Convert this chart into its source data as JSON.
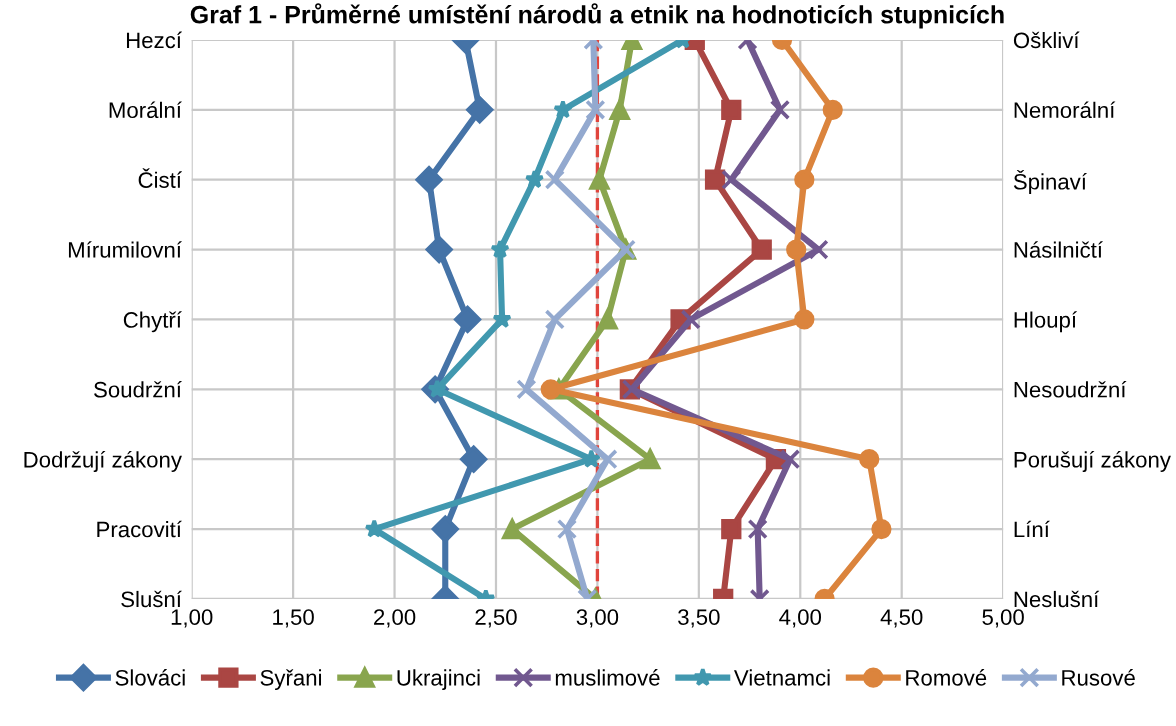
{
  "chart_data": {
    "type": "line",
    "orientation": "horizontal",
    "title": "Graf 1 - Průměrné umístění národů a etnik na hodnoticích stupnicích",
    "categories": [
      "Hezcí",
      "Morální",
      "Čistí",
      "Mírumilovní",
      "Chytří",
      "Soudržní",
      "Dodržují zákony",
      "Pracovití",
      "Slušní"
    ],
    "y2_categories": [
      "Oškliví",
      "Nemorální",
      "Špinaví",
      "Násilničtí",
      "Hloupí",
      "Nesoudržní",
      "Porušují zákony",
      "Líní",
      "Neslušní"
    ],
    "xlim": [
      1,
      5
    ],
    "xticks": [
      {
        "value": 1,
        "label": "1,00"
      },
      {
        "value": 1.5,
        "label": "1,50"
      },
      {
        "value": 2,
        "label": "2,00"
      },
      {
        "value": 2.5,
        "label": "2,50"
      },
      {
        "value": 3,
        "label": "3,00"
      },
      {
        "value": 3.5,
        "label": "3,50"
      },
      {
        "value": 4,
        "label": "4,00"
      },
      {
        "value": 4.5,
        "label": "4,50"
      },
      {
        "value": 5,
        "label": "5,00"
      }
    ],
    "grid": true,
    "legend": "bottom",
    "ref_lines": [
      {
        "axis": "x",
        "value": 3,
        "color": "#e0443c",
        "line_style": "dashed"
      }
    ],
    "series": [
      {
        "name": "Slováci",
        "color": "#4573a7",
        "marker": "diamond",
        "values": [
          2.35,
          2.42,
          2.17,
          2.22,
          2.36,
          2.2,
          2.39,
          2.25,
          2.25
        ]
      },
      {
        "name": "Syřani",
        "color": "#aa4643",
        "marker": "square",
        "values": [
          3.48,
          3.66,
          3.58,
          3.81,
          3.41,
          3.16,
          3.88,
          3.66,
          3.62
        ]
      },
      {
        "name": "Ukrajinci",
        "color": "#89a54e",
        "marker": "triangle",
        "values": [
          3.17,
          3.11,
          3.01,
          3.14,
          3.05,
          2.81,
          3.26,
          2.58,
          2.99
        ]
      },
      {
        "name": "muslimové",
        "color": "#71588f",
        "marker": "cross",
        "values": [
          3.74,
          3.9,
          3.66,
          4.09,
          3.46,
          3.17,
          3.95,
          3.79,
          3.8
        ]
      },
      {
        "name": "Vietnamci",
        "color": "#4198af",
        "marker": "star",
        "values": [
          3.42,
          2.83,
          2.69,
          2.52,
          2.53,
          2.21,
          2.97,
          1.9,
          2.45
        ]
      },
      {
        "name": "Romové",
        "color": "#db843d",
        "marker": "circle",
        "values": [
          3.91,
          4.16,
          4.02,
          3.98,
          4.02,
          2.77,
          4.34,
          4.4,
          4.12
        ]
      },
      {
        "name": "Rusové",
        "color": "#93a9cf",
        "marker": "cross",
        "values": [
          2.98,
          2.99,
          2.79,
          3.14,
          2.79,
          2.65,
          3.05,
          2.85,
          2.95
        ]
      }
    ]
  }
}
